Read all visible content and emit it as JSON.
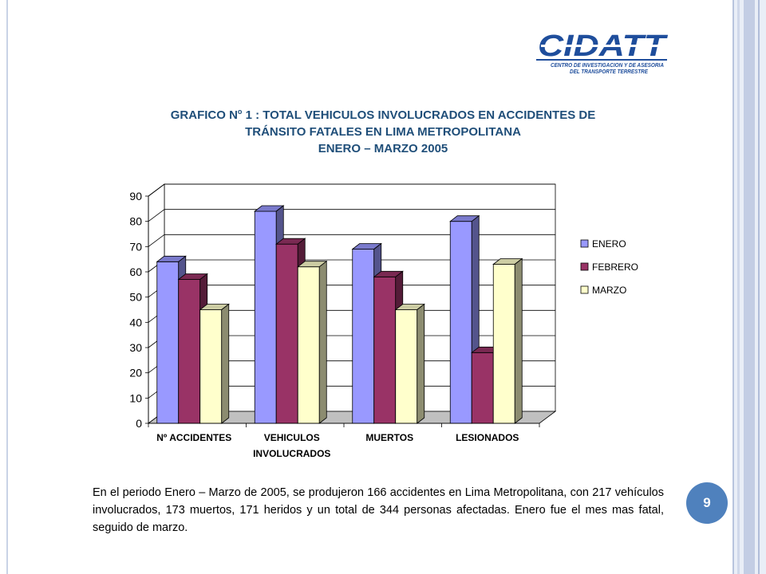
{
  "logo": {
    "name": "CIDATT",
    "tagline_1": "CENTRO DE INVESTIGACION Y DE ASESORIA",
    "tagline_2": "DEL TRANSPORTE TERRESTRE"
  },
  "title": {
    "line1_prefix": "GRAFICO N",
    "line1_sup": "o",
    "line1_suffix": " 1 : TOTAL VEHICULOS INVOLUCRADOS EN ACCIDENTES DE",
    "line2": "TRÁNSITO FATALES EN LIMA METROPOLITANA",
    "line3": "ENERO – MARZO 2005"
  },
  "chart_data": {
    "type": "bar",
    "categories": [
      "Nº ACCIDENTES",
      "VEHICULOS",
      "MUERTOS",
      "LESIONADOS"
    ],
    "category_sublabels": [
      "",
      "INVOLUCRADOS",
      "",
      ""
    ],
    "series": [
      {
        "name": "ENERO",
        "values": [
          64,
          84,
          69,
          80
        ],
        "color": "#9999ff"
      },
      {
        "name": "FEBRERO",
        "values": [
          57,
          71,
          58,
          28
        ],
        "color": "#993366"
      },
      {
        "name": "MARZO",
        "values": [
          45,
          62,
          45,
          63
        ],
        "color": "#ffffcc"
      }
    ],
    "ylim": [
      0,
      90
    ],
    "yticks": [
      0,
      10,
      20,
      30,
      40,
      50,
      60,
      70,
      80,
      90
    ],
    "grid": true,
    "legend": "right",
    "title": "",
    "xlabel": "",
    "ylabel": ""
  },
  "body_text": "En el periodo Enero – Marzo de 2005, se produjeron 166 accidentes en Lima Metropolitana, con 217 vehículos involucrados, 173 muertos, 171 heridos y un total de 344 personas afectadas. Enero fue el mes mas fatal, seguido de marzo.",
  "page_number": "9"
}
